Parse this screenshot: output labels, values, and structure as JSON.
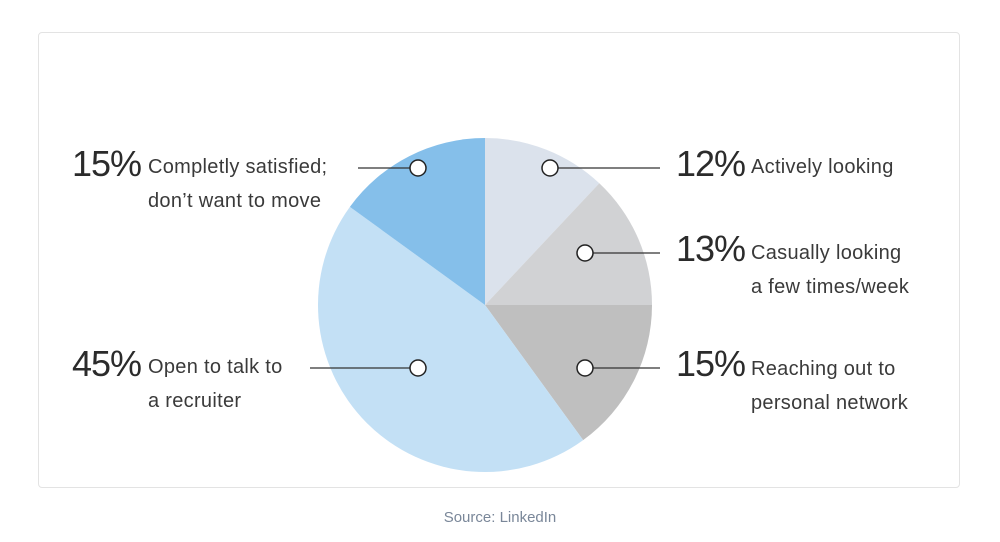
{
  "chart_data": {
    "type": "pie",
    "title": "",
    "start": "top, clockwise",
    "slices": [
      {
        "label": "Actively looking",
        "label_lines": [
          "Actively looking"
        ],
        "value": 12,
        "pct_text": "12%",
        "color": "#dbe2ec"
      },
      {
        "label": "Casually looking a few times/week",
        "label_lines": [
          "Casually looking",
          "a few times/week"
        ],
        "value": 13,
        "pct_text": "13%",
        "color": "#d1d2d4"
      },
      {
        "label": "Reaching out to personal network",
        "label_lines": [
          "Reaching out to",
          "personal network"
        ],
        "value": 15,
        "pct_text": "15%",
        "color": "#bfbfbf"
      },
      {
        "label": "Open to talk to a recruiter",
        "label_lines": [
          "Open to talk to",
          "a recruiter"
        ],
        "value": 45,
        "pct_text": "45%",
        "color": "#c3e0f5"
      },
      {
        "label": "Completly satisfied; don’t want to move",
        "label_lines": [
          "Completly satisfied;",
          "don’t want to move"
        ],
        "value": 15,
        "pct_text": "15%",
        "color": "#85bfea"
      }
    ]
  },
  "source": "Source: LinkedIn"
}
